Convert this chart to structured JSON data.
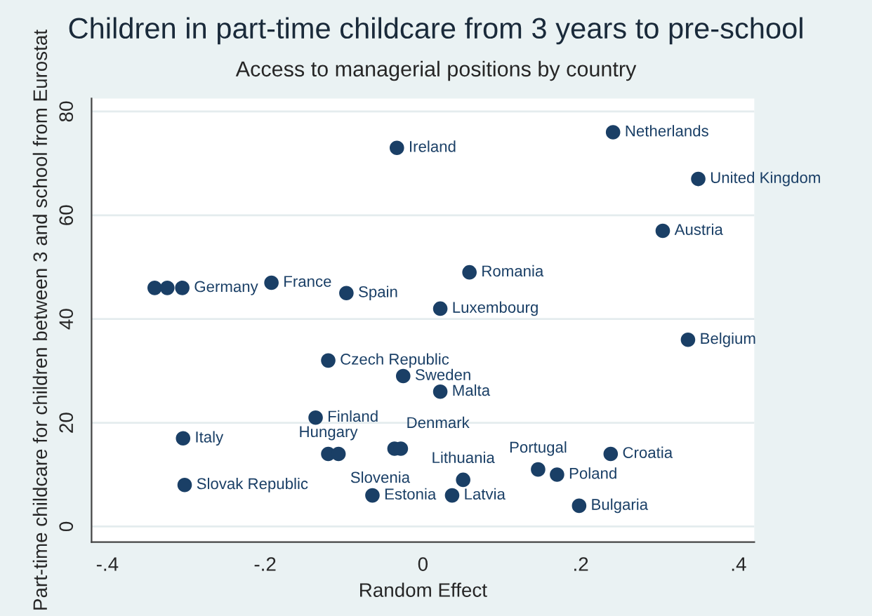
{
  "chart_data": {
    "type": "scatter",
    "title": "Children in part-time childcare from 3 years to pre-school",
    "subtitle": "Access to managerial positions by country",
    "xlabel": "Random Effect",
    "ylabel": "Part-time childcare for children between 3 and school from Eurostat",
    "series": [
      {
        "color": "#1a3f66",
        "x": [
          -0.033,
          0.241,
          0.349,
          0.304,
          0.059,
          0.022,
          0.336,
          -0.34,
          -0.324,
          -0.305,
          -0.192,
          -0.097,
          -0.12,
          -0.025,
          0.022,
          -0.136,
          -0.304,
          -0.302,
          -0.12,
          -0.107,
          -0.036,
          -0.028,
          -0.064,
          0.037,
          0.051,
          0.146,
          0.17,
          0.238,
          0.198
        ],
        "values": [
          73,
          76,
          67,
          57,
          49,
          42,
          36,
          46,
          46,
          46,
          47,
          45,
          32,
          29,
          26,
          21,
          17,
          8,
          14,
          14,
          15,
          15,
          6,
          6,
          9,
          11,
          10,
          14,
          4
        ],
        "value_labels": [
          "Ireland",
          "Netherlands",
          "United Kingdom",
          "Austria",
          "Romania",
          "Luxembourg",
          "Belgium",
          null,
          null,
          "Germany",
          "France",
          "Spain",
          "Czech Republic",
          "Sweden",
          "Malta",
          "Finland",
          "Italy",
          "Slovak Republic",
          "Hungary",
          "Slovenia",
          "Denmark",
          null,
          "Estonia",
          "Latvia",
          "Lithuania",
          "Portugal",
          "Poland",
          "Croatia",
          "Bulgaria"
        ]
      }
    ],
    "xlim": [
      -0.42,
      0.42
    ],
    "ylim": [
      -3,
      82.5
    ],
    "xticks": [
      {
        "value": -0.4,
        "label": "-.4"
      },
      {
        "value": -0.2,
        "label": "-.2"
      },
      0,
      {
        "value": 0.2,
        "label": ".2"
      },
      {
        "value": 0.4,
        "label": ".4"
      }
    ],
    "yticks": [
      0,
      20,
      40,
      60,
      80
    ],
    "grid": "y",
    "marker": "circle"
  }
}
